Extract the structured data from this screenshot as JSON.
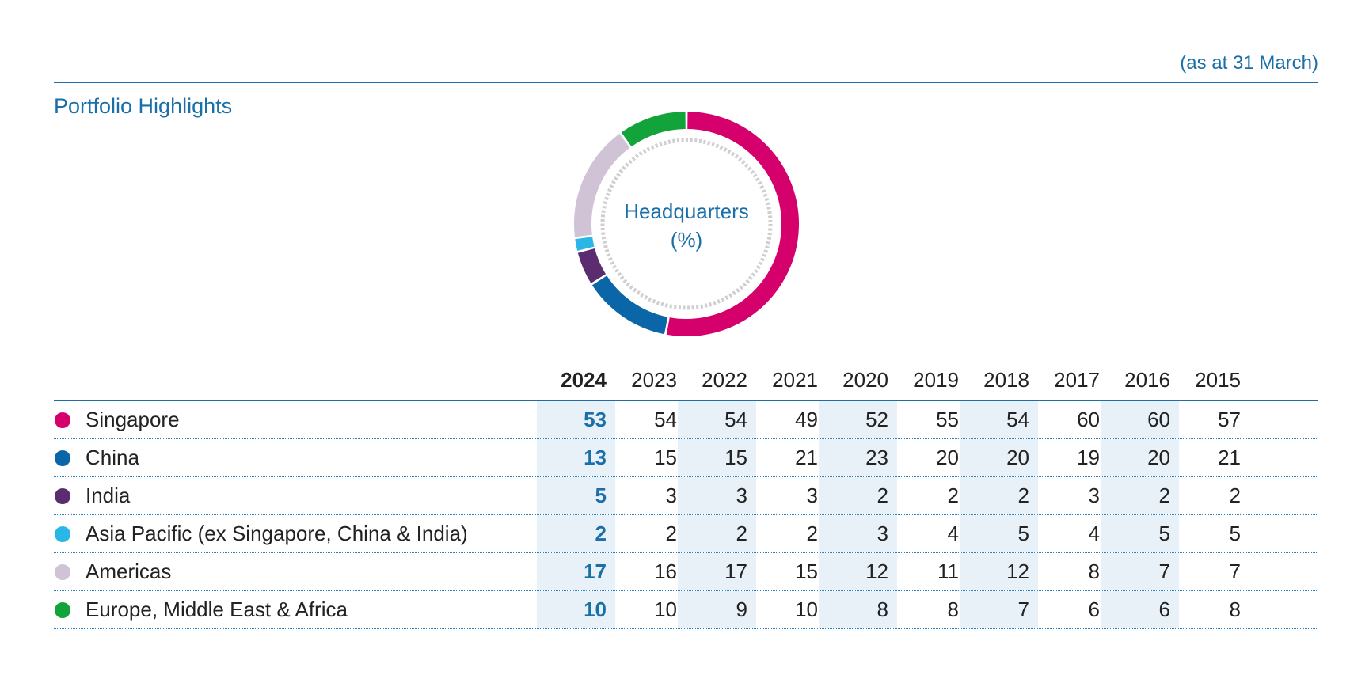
{
  "header": {
    "as_at": "(as at 31 March)",
    "section_title": "Portfolio Highlights"
  },
  "chart_data": [
    {
      "type": "pie",
      "title": "Headquarters",
      "unit": "(%)",
      "labels": [
        "Singapore",
        "China",
        "India",
        "Asia Pacific (ex Singapore, China & India)",
        "Americas",
        "Europe, Middle East & Africa"
      ],
      "values": [
        53,
        13,
        5,
        2,
        17,
        10
      ],
      "colors": [
        "#d5006b",
        "#0a66a6",
        "#5b2c6f",
        "#2bb6e8",
        "#d1c3d6",
        "#12a33b"
      ],
      "style": "donut"
    },
    {
      "type": "table",
      "columns": [
        "2024",
        "2023",
        "2022",
        "2021",
        "2020",
        "2019",
        "2018",
        "2017",
        "2016",
        "2015"
      ],
      "rows": [
        {
          "label": "Singapore",
          "color": "#d5006b",
          "values": [
            "53",
            "54",
            "54",
            "49",
            "52",
            "55",
            "54",
            "60",
            "60",
            "57"
          ]
        },
        {
          "label": "China",
          "color": "#0a66a6",
          "values": [
            "13",
            "15",
            "15",
            "21",
            "23",
            "20",
            "20",
            "19",
            "20",
            "21"
          ]
        },
        {
          "label": "India",
          "color": "#5b2c6f",
          "values": [
            "5",
            "3",
            "3",
            "3",
            "2",
            "2",
            "2",
            "3",
            "2",
            "2"
          ]
        },
        {
          "label": "Asia Pacific (ex Singapore, China & India)",
          "color": "#2bb6e8",
          "values": [
            "2",
            "2",
            "2",
            "2",
            "3",
            "4",
            "5",
            "4",
            "5",
            "5"
          ]
        },
        {
          "label": "Americas",
          "color": "#d1c3d6",
          "values": [
            "17",
            "16",
            "17",
            "15",
            "12",
            "11",
            "12",
            "8",
            "7",
            "7"
          ]
        },
        {
          "label": "Europe, Middle East & Africa",
          "color": "#12a33b",
          "values": [
            "10",
            "10",
            "9",
            "10",
            "8",
            "8",
            "7",
            "6",
            "6",
            "8"
          ]
        }
      ]
    }
  ]
}
